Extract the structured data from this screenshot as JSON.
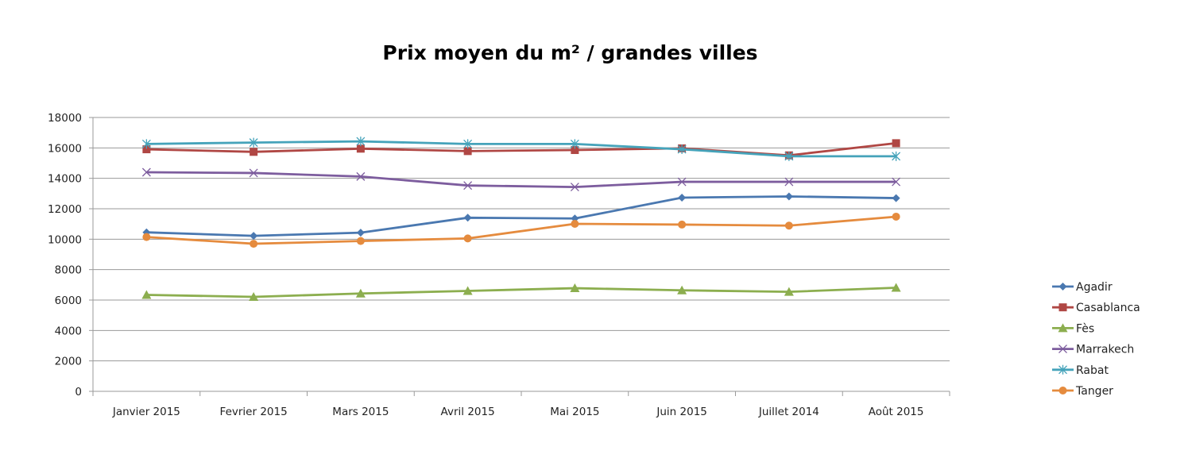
{
  "chart_data": {
    "type": "line",
    "title": "Prix moyen du m² / grandes villes",
    "xlabel": "",
    "ylabel": "",
    "categories": [
      "Janvier 2015",
      "Fevrier 2015",
      "Mars 2015",
      "Avril 2015",
      "Mai 2015",
      "Juin 2015",
      "Juillet 2014",
      "Août 2015"
    ],
    "ylim": [
      0,
      18000
    ],
    "yticks": [
      "0",
      "2000",
      "4000",
      "6000",
      "8000",
      "10000",
      "12000",
      "14000",
      "16000",
      "18000"
    ],
    "grid": true,
    "legend_position": "right",
    "series": [
      {
        "name": "Agadir",
        "color": "#4a78b0",
        "marker": "diamond",
        "values": [
          10450,
          10220,
          10430,
          11410,
          11360,
          12730,
          12810,
          12700
        ]
      },
      {
        "name": "Casablanca",
        "color": "#b04744",
        "marker": "square",
        "values": [
          15910,
          15740,
          15950,
          15790,
          15860,
          15970,
          15510,
          16310
        ]
      },
      {
        "name": "Fès",
        "color": "#8cae4f",
        "marker": "triangle",
        "values": [
          6340,
          6210,
          6430,
          6600,
          6780,
          6640,
          6540,
          6810
        ]
      },
      {
        "name": "Marrakech",
        "color": "#7d5d9e",
        "marker": "x",
        "values": [
          14400,
          14350,
          14120,
          13530,
          13430,
          13770,
          13770,
          13770
        ]
      },
      {
        "name": "Rabat",
        "color": "#45a3ba",
        "marker": "star",
        "values": [
          16260,
          16350,
          16430,
          16260,
          16260,
          15910,
          15450,
          15450
        ]
      },
      {
        "name": "Tanger",
        "color": "#e58b3e",
        "marker": "circle",
        "values": [
          10140,
          9700,
          9880,
          10050,
          11010,
          10960,
          10890,
          11480
        ]
      }
    ]
  }
}
